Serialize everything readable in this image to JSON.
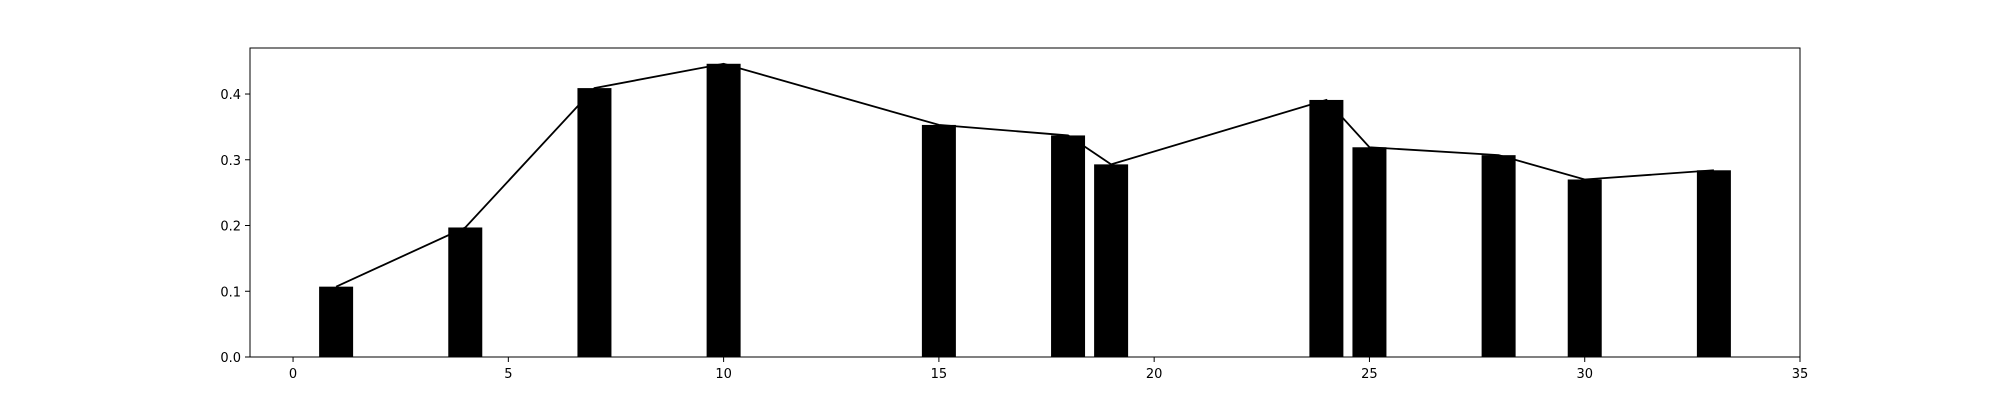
{
  "chart_data": {
    "type": "bar",
    "x": [
      1,
      4,
      7,
      10,
      15,
      18,
      19,
      24,
      25,
      28,
      30,
      33
    ],
    "values": [
      0.107,
      0.197,
      0.409,
      0.446,
      0.353,
      0.337,
      0.293,
      0.391,
      0.319,
      0.307,
      0.27,
      0.284
    ],
    "overlay_line": true,
    "xlim": [
      -1,
      35
    ],
    "ylim": [
      0,
      0.47
    ],
    "xticks": [
      "0",
      "5",
      "10",
      "15",
      "20",
      "25",
      "30",
      "35"
    ],
    "yticks": [
      "0.0",
      "0.1",
      "0.2",
      "0.3",
      "0.4"
    ],
    "grid": false,
    "colors": {
      "bars": "#000000",
      "line": "#000000",
      "axes": "#000000"
    }
  }
}
